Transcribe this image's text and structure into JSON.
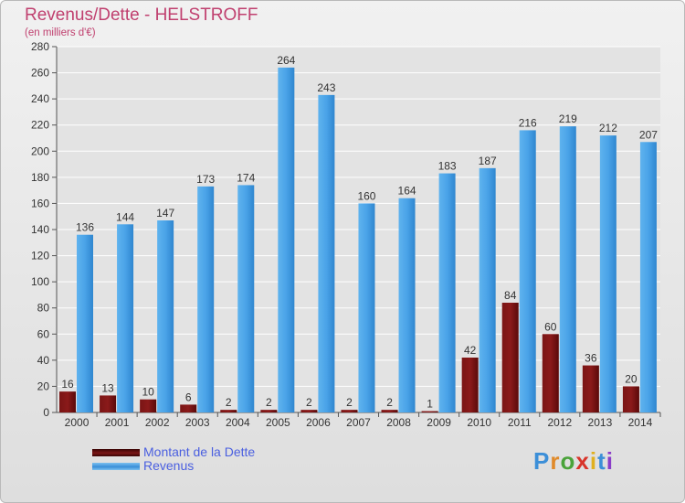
{
  "header": {
    "title": "Revenus/Dette - HELSTROFF",
    "subtitle": "(en milliers d'€)"
  },
  "chart_data": {
    "type": "bar",
    "title": "Revenus/Dette - HELSTROFF",
    "ylabel": "(en milliers d'€)",
    "xlabel": "",
    "categories": [
      "2000",
      "2001",
      "2002",
      "2003",
      "2004",
      "2005",
      "2006",
      "2007",
      "2008",
      "2009",
      "2010",
      "2011",
      "2012",
      "2013",
      "2014"
    ],
    "series": [
      {
        "name": "Montant de la Dette",
        "color": "#8b1a1a",
        "values": [
          16,
          13,
          10,
          6,
          2,
          2,
          2,
          2,
          2,
          1,
          42,
          84,
          60,
          36,
          20
        ]
      },
      {
        "name": "Revenus",
        "color": "#4aa3e8",
        "values": [
          136,
          144,
          147,
          173,
          174,
          264,
          243,
          160,
          164,
          183,
          187,
          216,
          219,
          212,
          207
        ]
      }
    ],
    "ylim": [
      0,
      280
    ],
    "yticks": [
      0,
      20,
      40,
      60,
      80,
      100,
      120,
      140,
      160,
      180,
      200,
      220,
      240,
      260,
      280
    ],
    "grid": true,
    "legend": "bottom-left"
  },
  "legend": {
    "items": [
      {
        "label": "Montant de la Dette",
        "color": "#6b0f0f"
      },
      {
        "label": "Revenus",
        "color": "#4aa3e8"
      }
    ]
  },
  "logo": {
    "letters": [
      "P",
      "r",
      "o",
      "x",
      "i",
      "t",
      "i"
    ],
    "colors": [
      "#3c8fd8",
      "#e08a2a",
      "#4aa33a",
      "#d8342a",
      "#e0b020",
      "#3c8fd8",
      "#8a3cc8"
    ]
  }
}
